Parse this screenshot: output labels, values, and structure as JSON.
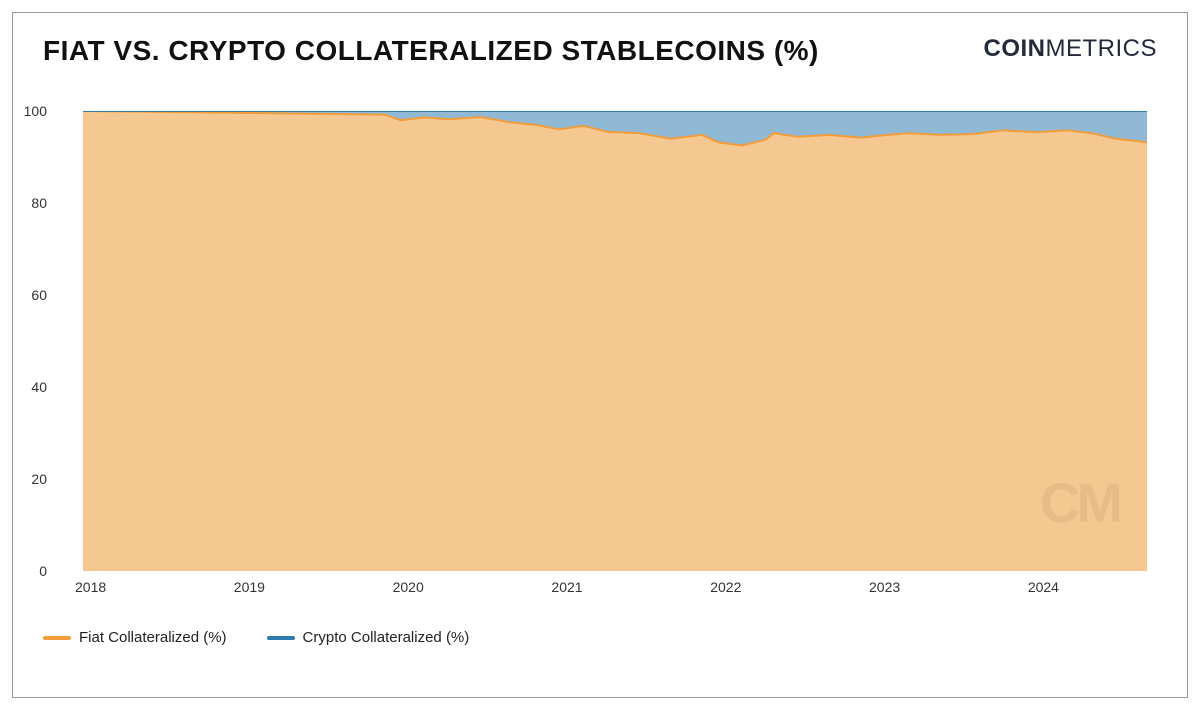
{
  "header": {
    "title": "FIAT VS. CRYPTO COLLATERALIZED STABLECOINS (%)",
    "brand_bold": "COIN",
    "brand_thin": "METRICS"
  },
  "chart": {
    "type": "stacked-area",
    "y_axis": {
      "min": 0,
      "max": 100,
      "ticks": [
        0,
        20,
        40,
        60,
        80,
        100
      ],
      "label_fontsize": 14,
      "label_color": "#333333"
    },
    "x_axis": {
      "min": 2018.0,
      "max": 2024.7,
      "ticks": [
        2018,
        2019,
        2020,
        2021,
        2022,
        2023,
        2024
      ],
      "tick_labels": [
        "2018",
        "2019",
        "2020",
        "2021",
        "2022",
        "2023",
        "2024"
      ],
      "label_fontsize": 14,
      "label_color": "#333333"
    },
    "series": [
      {
        "name": "Fiat Collateralized (%)",
        "fill_color": "#f4c890",
        "stroke_color": "#f39c3c",
        "stroke_width": 2,
        "data": [
          {
            "x": 2018.0,
            "y": 100.0
          },
          {
            "x": 2019.0,
            "y": 99.6
          },
          {
            "x": 2019.9,
            "y": 99.2
          },
          {
            "x": 2020.0,
            "y": 98.0
          },
          {
            "x": 2020.15,
            "y": 98.6
          },
          {
            "x": 2020.3,
            "y": 98.2
          },
          {
            "x": 2020.5,
            "y": 98.7
          },
          {
            "x": 2020.7,
            "y": 97.5
          },
          {
            "x": 2020.85,
            "y": 97.0
          },
          {
            "x": 2021.0,
            "y": 96.0
          },
          {
            "x": 2021.15,
            "y": 96.8
          },
          {
            "x": 2021.3,
            "y": 95.5
          },
          {
            "x": 2021.5,
            "y": 95.2
          },
          {
            "x": 2021.7,
            "y": 94.0
          },
          {
            "x": 2021.9,
            "y": 94.8
          },
          {
            "x": 2022.0,
            "y": 93.2
          },
          {
            "x": 2022.15,
            "y": 92.5
          },
          {
            "x": 2022.3,
            "y": 93.8
          },
          {
            "x": 2022.35,
            "y": 95.2
          },
          {
            "x": 2022.5,
            "y": 94.4
          },
          {
            "x": 2022.7,
            "y": 94.8
          },
          {
            "x": 2022.9,
            "y": 94.2
          },
          {
            "x": 2023.0,
            "y": 94.6
          },
          {
            "x": 2023.2,
            "y": 95.2
          },
          {
            "x": 2023.4,
            "y": 94.8
          },
          {
            "x": 2023.6,
            "y": 95.0
          },
          {
            "x": 2023.8,
            "y": 95.8
          },
          {
            "x": 2024.0,
            "y": 95.4
          },
          {
            "x": 2024.2,
            "y": 95.8
          },
          {
            "x": 2024.35,
            "y": 95.2
          },
          {
            "x": 2024.5,
            "y": 94.0
          },
          {
            "x": 2024.7,
            "y": 93.2
          }
        ]
      },
      {
        "name": "Crypto Collateralized (%)",
        "fill_color": "#8fb9d4",
        "stroke_color": "#2f7bb0",
        "stroke_width": 2,
        "top_constant": 100
      }
    ],
    "background_color": "#ffffff",
    "watermark": "CM"
  },
  "legend": {
    "items": [
      {
        "label": "Fiat Collateralized (%)",
        "color": "#f39c3c"
      },
      {
        "label": "Crypto Collateralized (%)",
        "color": "#2f7bb0"
      }
    ]
  }
}
